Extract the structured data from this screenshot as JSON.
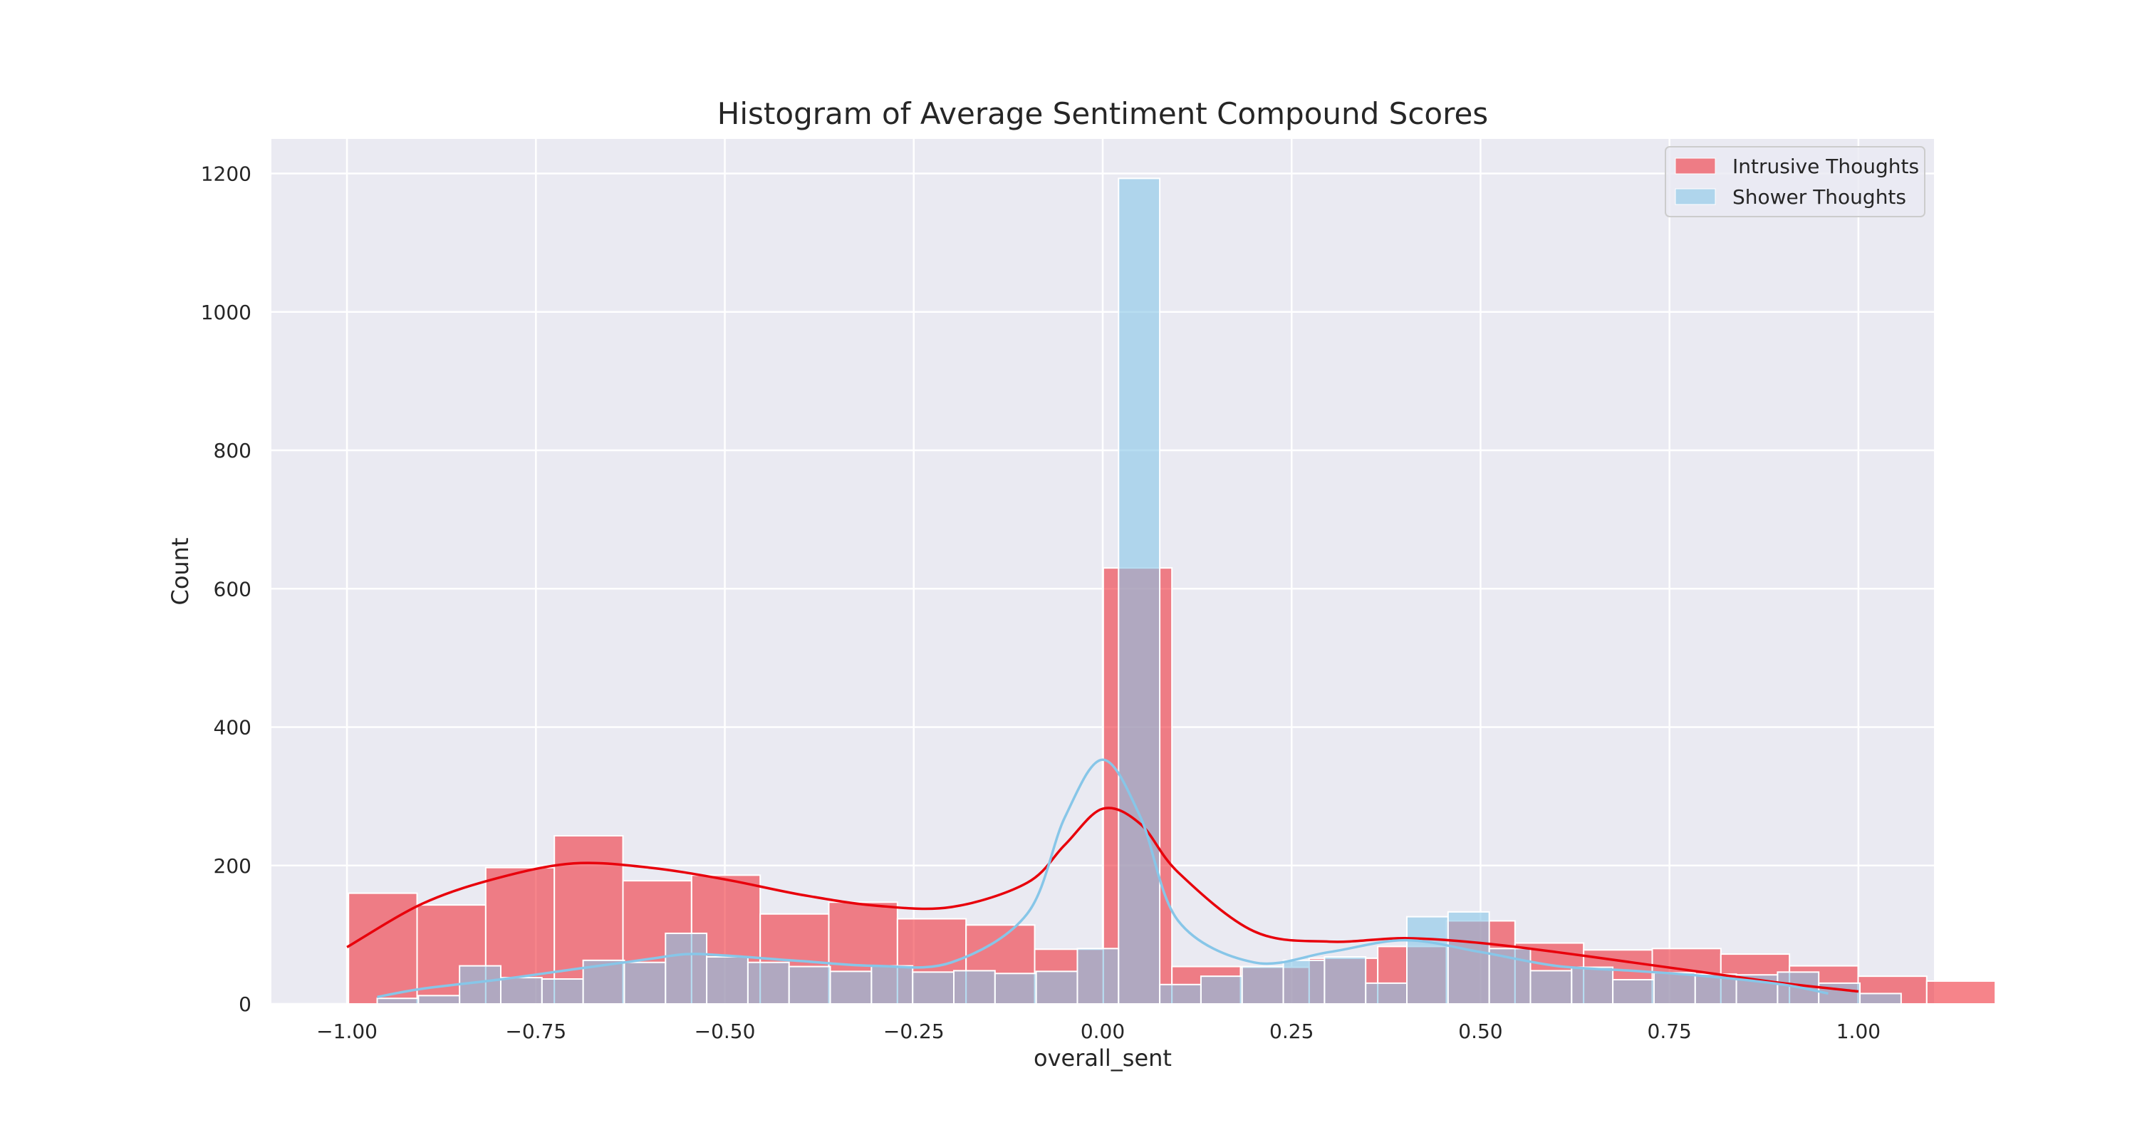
{
  "chart_data": {
    "type": "bar",
    "title": "Histogram of Average Sentiment Compound Scores",
    "xlabel": "overall_sent",
    "ylabel": "Count",
    "xlim": [
      -1.1,
      1.1
    ],
    "ylim": [
      0,
      1250
    ],
    "x_ticks": [
      -1.0,
      -0.75,
      -0.5,
      -0.25,
      0.0,
      0.25,
      0.5,
      0.75,
      1.0
    ],
    "x_tick_labels": [
      "−1.00",
      "−0.75",
      "−0.50",
      "−0.25",
      "0.00",
      "0.25",
      "0.50",
      "0.75",
      "1.00"
    ],
    "y_ticks": [
      0,
      200,
      400,
      600,
      800,
      1000,
      1200
    ],
    "y_tick_labels": [
      "0",
      "200",
      "400",
      "600",
      "800",
      "1000",
      "1200"
    ],
    "grid": true,
    "legend_position": "top-right",
    "series": [
      {
        "name": "Intrusive Thoughts",
        "color": "#f0323c",
        "bin_start": -0.998,
        "bin_width": 0.0908,
        "values": [
          160,
          143,
          197,
          243,
          178,
          186,
          130,
          147,
          123,
          114,
          79,
          630,
          54,
          53,
          66,
          83,
          120,
          88,
          78,
          80,
          72,
          55,
          40,
          33
        ],
        "kde_x": [
          -1.0,
          -0.9,
          -0.8,
          -0.7,
          -0.6,
          -0.5,
          -0.4,
          -0.3,
          -0.2,
          -0.1,
          -0.05,
          0.0,
          0.05,
          0.1,
          0.2,
          0.3,
          0.4,
          0.5,
          0.6,
          0.7,
          0.8,
          0.9,
          1.0
        ],
        "kde_y": [
          82,
          145,
          182,
          203,
          197,
          180,
          158,
          142,
          140,
          175,
          230,
          282,
          260,
          190,
          105,
          90,
          95,
          88,
          75,
          60,
          45,
          30,
          18
        ]
      },
      {
        "name": "Shower Thoughts",
        "color": "#87c6e8",
        "bin_start": -0.96,
        "bin_width": 0.0545,
        "values": [
          8,
          12,
          55,
          38,
          36,
          63,
          60,
          102,
          68,
          60,
          54,
          47,
          55,
          46,
          48,
          44,
          47,
          80,
          1193,
          28,
          40,
          54,
          63,
          68,
          30,
          126,
          133,
          80,
          48,
          53,
          35,
          45,
          43,
          42,
          46,
          30,
          15
        ],
        "kde_x": [
          -0.96,
          -0.9,
          -0.8,
          -0.7,
          -0.6,
          -0.55,
          -0.5,
          -0.4,
          -0.3,
          -0.2,
          -0.1,
          -0.05,
          0.0,
          0.05,
          0.1,
          0.2,
          0.3,
          0.4,
          0.5,
          0.6,
          0.7,
          0.8,
          0.9,
          0.96
        ],
        "kde_y": [
          10,
          22,
          35,
          50,
          65,
          72,
          70,
          62,
          55,
          60,
          130,
          270,
          353,
          270,
          120,
          60,
          75,
          92,
          75,
          55,
          48,
          40,
          28,
          15
        ]
      }
    ]
  },
  "colors": {
    "plot_background": "#eaeaf2",
    "grid": "#ffffff",
    "intrusive_line": "#e8000b",
    "shower_line": "#87c6e8"
  }
}
